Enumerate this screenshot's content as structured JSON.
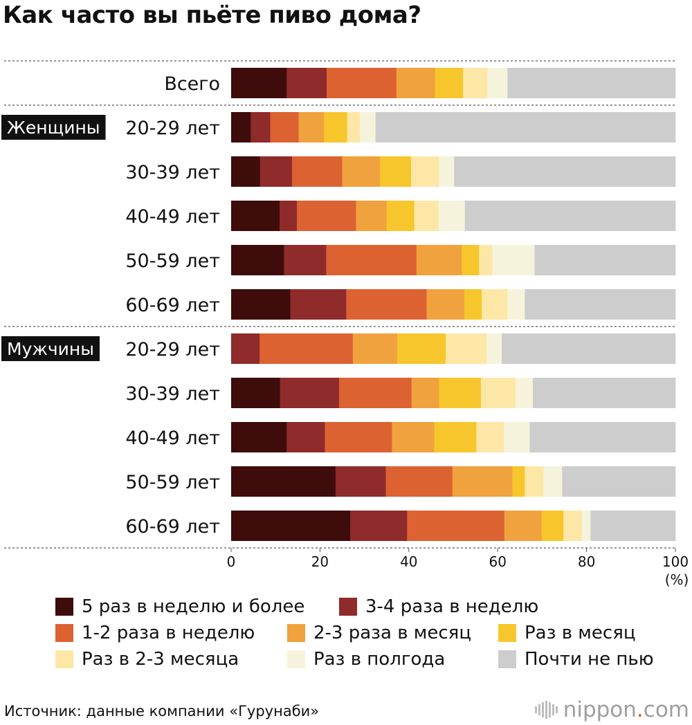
{
  "title": "Как часто вы пьёте пиво дома?",
  "unit_label": "(%)",
  "source": "Источник: данные компании «Гурунаби»",
  "brand": {
    "name": "nippon",
    "dot": ".",
    "tld": "com"
  },
  "chart_data": {
    "type": "bar",
    "orientation": "horizontal",
    "stacked": true,
    "title": "Как часто вы пьёте пиво дома?",
    "xlim": [
      0,
      100
    ],
    "xticks": [
      "0",
      "20",
      "40",
      "60",
      "80",
      "100"
    ],
    "xunit": "(%)",
    "legend_position": "bottom",
    "groups": [
      {
        "label": "",
        "rows": [
          0
        ]
      },
      {
        "label": "Женщины",
        "rows": [
          1,
          2,
          3,
          4,
          5
        ]
      },
      {
        "label": "Мужчины",
        "rows": [
          6,
          7,
          8,
          9,
          10
        ]
      }
    ],
    "categories": [
      "Всего",
      "20-29 лет",
      "30-39 лет",
      "40-49 лет",
      "50-59 лет",
      "60-69 лет",
      "20-29 лет",
      "30-39 лет",
      "40-49 лет",
      "50-59 лет",
      "60-69 лет"
    ],
    "series": [
      {
        "name": "5 раз в неделю и более",
        "color": "#3d0c0b",
        "values": [
          12.5,
          4.4,
          6.5,
          10.9,
          11.9,
          13.3,
          0.0,
          11.0,
          12.5,
          23.5,
          26.8
        ]
      },
      {
        "name": "3-4 раза в неделю",
        "color": "#8f2b2b",
        "values": [
          9.0,
          4.4,
          7.2,
          3.9,
          9.5,
          12.6,
          6.4,
          13.3,
          8.6,
          11.3,
          12.8
        ]
      },
      {
        "name": "1-2 раза в неделю",
        "color": "#dc6232",
        "values": [
          15.7,
          6.4,
          11.3,
          13.3,
          20.3,
          18.1,
          21.0,
          16.3,
          15.1,
          15.0,
          21.9
        ]
      },
      {
        "name": "2-3 раза в месяц",
        "color": "#f0a23e",
        "values": [
          8.7,
          5.7,
          8.5,
          6.9,
          10.2,
          8.5,
          10.0,
          6.2,
          9.5,
          13.5,
          8.4
        ]
      },
      {
        "name": "Раз в месяц",
        "color": "#f7c62c",
        "values": [
          6.3,
          5.2,
          7.0,
          6.2,
          3.9,
          3.9,
          10.9,
          9.4,
          9.5,
          2.8,
          4.9
        ]
      },
      {
        "name": "Раз в 2-3 месяца",
        "color": "#fde7a6",
        "values": [
          5.5,
          2.9,
          6.3,
          5.5,
          3.0,
          5.8,
          9.2,
          7.8,
          6.2,
          4.2,
          4.1
        ]
      },
      {
        "name": "Раз в полгода",
        "color": "#f6f3dd",
        "values": [
          4.5,
          3.5,
          3.4,
          5.9,
          9.5,
          3.9,
          3.4,
          3.9,
          5.8,
          4.2,
          2.0
        ]
      },
      {
        "name": "Почти не пью",
        "color": "#cdcdcd",
        "values": [
          37.8,
          67.5,
          49.8,
          47.4,
          31.7,
          33.9,
          39.1,
          32.1,
          32.8,
          25.5,
          19.1
        ]
      }
    ]
  }
}
